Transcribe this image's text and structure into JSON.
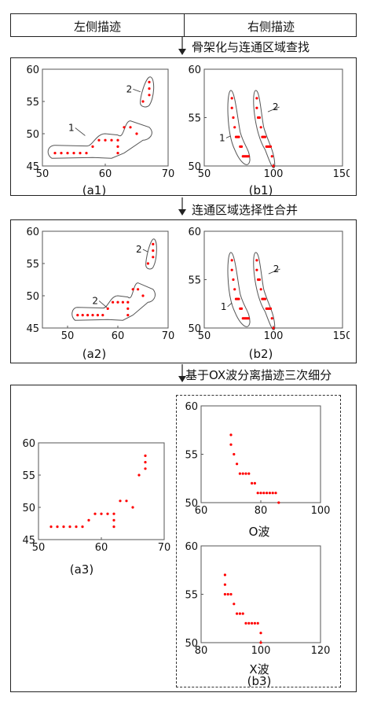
{
  "header": {
    "left": "左侧描迹",
    "right": "右侧描迹"
  },
  "steps": [
    "骨架化与连通区域查找",
    "连通区域选择性合并",
    "基于OX波分离描迹三次细分"
  ],
  "captions": {
    "a1": "(a1)",
    "b1": "(b1)",
    "a2": "(a2)",
    "b2": "(b2)",
    "a3": "(a3)",
    "o": "O波",
    "x": "X波",
    "b3": "(b3)"
  },
  "colors": {
    "points": "#ff0000",
    "outline": "#555555",
    "frame": "#222222"
  },
  "chart_data": [
    {
      "id": "a1",
      "type": "scatter",
      "xlim": [
        50,
        70
      ],
      "ylim": [
        45,
        60
      ],
      "xticks": [
        50,
        60,
        70
      ],
      "yticks": [
        45,
        50,
        55,
        60
      ],
      "annotations": [
        "1",
        "2"
      ],
      "series": [
        {
          "values": [
            [
              52,
              47
            ],
            [
              53,
              47
            ],
            [
              54,
              47
            ],
            [
              55,
              47
            ],
            [
              56,
              47
            ],
            [
              57,
              47
            ],
            [
              58,
              48
            ],
            [
              59,
              49
            ],
            [
              60,
              49
            ],
            [
              61,
              49
            ],
            [
              62,
              49
            ],
            [
              62,
              48
            ],
            [
              62,
              47
            ],
            [
              63,
              51
            ],
            [
              64,
              51
            ],
            [
              65,
              50
            ],
            [
              66,
              55
            ],
            [
              67,
              56
            ],
            [
              67,
              57
            ],
            [
              67,
              58
            ]
          ]
        }
      ]
    },
    {
      "id": "b1",
      "type": "scatter",
      "xlim": [
        50,
        150
      ],
      "ylim": [
        50,
        60
      ],
      "xticks": [
        50,
        100,
        150
      ],
      "yticks": [
        50,
        55,
        60
      ],
      "annotations": [
        "1",
        "2"
      ],
      "series": [
        {
          "values": [
            [
              70,
              57
            ],
            [
              70,
              56
            ],
            [
              71,
              55
            ],
            [
              72,
              54
            ],
            [
              73,
              53
            ],
            [
              74,
              53
            ],
            [
              75,
              53
            ],
            [
              76,
              52
            ],
            [
              77,
              52
            ],
            [
              78,
              51
            ],
            [
              79,
              51
            ],
            [
              80,
              51
            ],
            [
              81,
              51
            ],
            [
              82,
              51
            ],
            [
              88,
              57
            ],
            [
              88,
              56
            ],
            [
              89,
              55
            ],
            [
              89,
              55
            ],
            [
              90,
              55
            ],
            [
              91,
              54
            ],
            [
              92,
              53
            ],
            [
              93,
              53
            ],
            [
              94,
              53
            ],
            [
              95,
              52
            ],
            [
              96,
              52
            ],
            [
              97,
              52
            ],
            [
              98,
              52
            ],
            [
              99,
              51
            ],
            [
              100,
              50
            ]
          ]
        }
      ]
    },
    {
      "id": "a2",
      "type": "scatter",
      "xlim": [
        45,
        70
      ],
      "ylim": [
        45,
        60
      ],
      "xticks": [
        50,
        60,
        70
      ],
      "yticks": [
        45,
        50,
        55,
        60
      ],
      "annotations": [
        "2",
        "2"
      ],
      "series": [
        {
          "values": [
            [
              52,
              47
            ],
            [
              53,
              47
            ],
            [
              54,
              47
            ],
            [
              55,
              47
            ],
            [
              56,
              47
            ],
            [
              57,
              47
            ],
            [
              58,
              48
            ],
            [
              59,
              49
            ],
            [
              60,
              49
            ],
            [
              61,
              49
            ],
            [
              62,
              49
            ],
            [
              62,
              48
            ],
            [
              62,
              47
            ],
            [
              63,
              51
            ],
            [
              64,
              51
            ],
            [
              65,
              50
            ],
            [
              66,
              55
            ],
            [
              67,
              56
            ],
            [
              67,
              57
            ],
            [
              67,
              58
            ]
          ]
        }
      ]
    },
    {
      "id": "b2",
      "type": "scatter",
      "xlim": [
        50,
        150
      ],
      "ylim": [
        50,
        60
      ],
      "xticks": [
        50,
        100,
        150
      ],
      "yticks": [
        50,
        55,
        60
      ],
      "annotations": [
        "1",
        "2"
      ],
      "series": [
        {
          "values": [
            [
              70,
              57
            ],
            [
              70,
              56
            ],
            [
              71,
              55
            ],
            [
              72,
              54
            ],
            [
              73,
              53
            ],
            [
              74,
              53
            ],
            [
              75,
              53
            ],
            [
              76,
              52
            ],
            [
              77,
              52
            ],
            [
              78,
              51
            ],
            [
              79,
              51
            ],
            [
              80,
              51
            ],
            [
              81,
              51
            ],
            [
              82,
              51
            ],
            [
              88,
              57
            ],
            [
              88,
              56
            ],
            [
              89,
              55
            ],
            [
              89,
              55
            ],
            [
              90,
              55
            ],
            [
              91,
              54
            ],
            [
              92,
              53
            ],
            [
              93,
              53
            ],
            [
              94,
              53
            ],
            [
              95,
              52
            ],
            [
              96,
              52
            ],
            [
              97,
              52
            ],
            [
              98,
              52
            ],
            [
              99,
              51
            ],
            [
              100,
              50
            ]
          ]
        }
      ]
    },
    {
      "id": "a3",
      "type": "scatter",
      "xlim": [
        50,
        70
      ],
      "ylim": [
        45,
        60
      ],
      "xticks": [
        50,
        60,
        70
      ],
      "yticks": [
        45,
        50,
        55,
        60
      ],
      "series": [
        {
          "values": [
            [
              52,
              47
            ],
            [
              53,
              47
            ],
            [
              54,
              47
            ],
            [
              55,
              47
            ],
            [
              56,
              47
            ],
            [
              57,
              47
            ],
            [
              58,
              48
            ],
            [
              59,
              49
            ],
            [
              60,
              49
            ],
            [
              61,
              49
            ],
            [
              62,
              49
            ],
            [
              62,
              48
            ],
            [
              62,
              47
            ],
            [
              63,
              51
            ],
            [
              64,
              51
            ],
            [
              65,
              50
            ],
            [
              66,
              55
            ],
            [
              67,
              56
            ],
            [
              67,
              57
            ],
            [
              67,
              58
            ]
          ]
        }
      ]
    },
    {
      "id": "o",
      "type": "scatter",
      "xlim": [
        60,
        100
      ],
      "ylim": [
        50,
        60
      ],
      "xticks": [
        60,
        80,
        100
      ],
      "yticks": [
        50,
        55,
        60
      ],
      "series": [
        {
          "values": [
            [
              70,
              57
            ],
            [
              70,
              56
            ],
            [
              71,
              55
            ],
            [
              72,
              54
            ],
            [
              73,
              53
            ],
            [
              74,
              53
            ],
            [
              75,
              53
            ],
            [
              76,
              53
            ],
            [
              77,
              52
            ],
            [
              78,
              52
            ],
            [
              79,
              51
            ],
            [
              80,
              51
            ],
            [
              81,
              51
            ],
            [
              82,
              51
            ],
            [
              83,
              51
            ],
            [
              84,
              51
            ],
            [
              85,
              51
            ],
            [
              86,
              50
            ]
          ]
        }
      ]
    },
    {
      "id": "x",
      "type": "scatter",
      "xlim": [
        80,
        120
      ],
      "ylim": [
        50,
        60
      ],
      "xticks": [
        80,
        100,
        120
      ],
      "yticks": [
        50,
        55,
        60
      ],
      "series": [
        {
          "values": [
            [
              88,
              57
            ],
            [
              88,
              56
            ],
            [
              88,
              55
            ],
            [
              89,
              55
            ],
            [
              90,
              55
            ],
            [
              91,
              54
            ],
            [
              92,
              53
            ],
            [
              93,
              53
            ],
            [
              94,
              53
            ],
            [
              95,
              52
            ],
            [
              96,
              52
            ],
            [
              97,
              52
            ],
            [
              98,
              52
            ],
            [
              99,
              52
            ],
            [
              100,
              51
            ],
            [
              100,
              50
            ]
          ]
        }
      ]
    }
  ]
}
